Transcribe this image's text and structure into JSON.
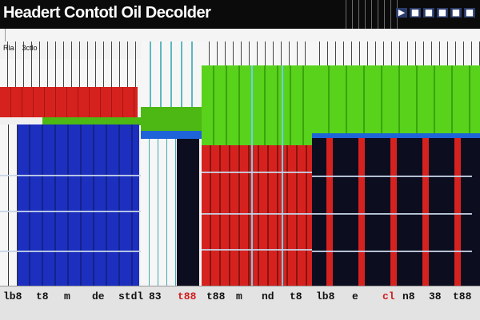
{
  "window": {
    "title": "Headert Contotl Oil Decolder"
  },
  "titlebar_icons": [
    "▶",
    "■",
    "■",
    "■",
    "■",
    "■"
  ],
  "panel": {
    "label": "Rla    3ctlo"
  },
  "side_icons": [
    "■",
    "■",
    "■"
  ],
  "bottom_labels": [
    {
      "text": "lb8",
      "color": "#111111"
    },
    {
      "text": "t8",
      "color": "#111111"
    },
    {
      "text": "m",
      "color": "#111111"
    },
    {
      "text": "de",
      "color": "#111111"
    },
    {
      "text": "stdl",
      "color": "#111111"
    },
    {
      "text": "83",
      "color": "#111111"
    },
    {
      "text": "t88",
      "color": "#d21c1c"
    },
    {
      "text": "t88",
      "color": "#111111"
    },
    {
      "text": "m",
      "color": "#111111"
    },
    {
      "text": "nd",
      "color": "#111111"
    },
    {
      "text": "t8",
      "color": "#111111"
    },
    {
      "text": "lb8",
      "color": "#111111"
    },
    {
      "text": "e",
      "color": "#111111"
    },
    {
      "text": "cl",
      "color": "#d21c1c"
    },
    {
      "text": "n8",
      "color": "#111111"
    },
    {
      "text": "38",
      "color": "#111111"
    },
    {
      "text": "t88",
      "color": "#111111"
    }
  ],
  "colors": {
    "red": "#d6221f",
    "blue": "#1c2fbf",
    "green": "#58d21b",
    "dark": "#0d0d20",
    "grid": "#444444"
  }
}
